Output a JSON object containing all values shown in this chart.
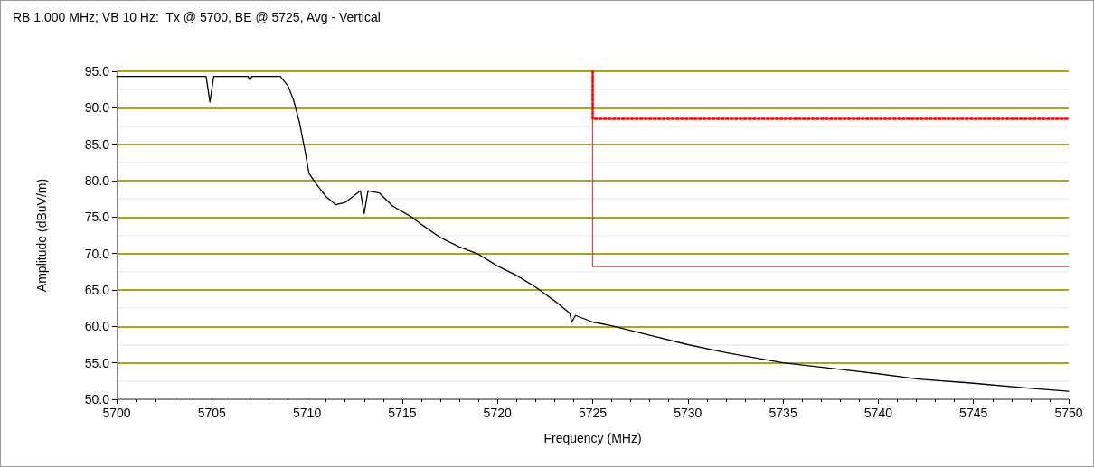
{
  "chart_data": {
    "type": "line",
    "title": "RB 1.000 MHz; VB 10 Hz:  Tx @ 5700, BE @ 5725, Avg - Vertical",
    "xlabel": "Frequency (MHz)",
    "ylabel": "Amplitude (dBuV/m)",
    "xlim": [
      5700,
      5750
    ],
    "xticks": [
      5700,
      5705,
      5710,
      5715,
      5720,
      5725,
      5730,
      5735,
      5740,
      5745,
      5750
    ],
    "ylim": [
      50,
      95
    ],
    "yticks": [
      {
        "value": 50,
        "label": "50.0"
      },
      {
        "value": 55,
        "label": "55.0"
      },
      {
        "value": 60,
        "label": "60.0"
      },
      {
        "value": 65,
        "label": "65.0"
      },
      {
        "value": 70,
        "label": "70.0"
      },
      {
        "value": 75,
        "label": "75.0"
      },
      {
        "value": 80,
        "label": "80.0"
      },
      {
        "value": 85,
        "label": "85.0"
      },
      {
        "value": 90,
        "label": "90.0"
      },
      {
        "value": 95,
        "label": "95.0"
      }
    ],
    "grid": "y",
    "marker": "none",
    "series": [
      {
        "color": "#000000",
        "line_style": "solid",
        "x": [
          5700,
          5704.7,
          5704.9,
          5705.1,
          5706.9,
          5707,
          5707.1,
          5708.6,
          5709,
          5709.3,
          5709.6,
          5709.9,
          5710.1,
          5710.5,
          5711,
          5711.5,
          5712,
          5712.6,
          5712.8,
          5713,
          5713.2,
          5713.8,
          5714.5,
          5715.5,
          5716,
          5717,
          5718,
          5719,
          5720,
          5721,
          5722,
          5723,
          5723.8,
          5723.9,
          5724.1,
          5725,
          5726,
          5728,
          5730,
          5732,
          5735,
          5738,
          5740,
          5742,
          5745,
          5748,
          5750
        ],
        "values": [
          94.3,
          94.3,
          90.8,
          94.3,
          94.3,
          93.8,
          94.3,
          94.3,
          93,
          91,
          88,
          84,
          81,
          79.5,
          77.8,
          76.7,
          77,
          78.2,
          78.6,
          75.5,
          78.6,
          78.3,
          76.5,
          75,
          74,
          72.2,
          70.9,
          69.9,
          68.3,
          67,
          65.4,
          63.5,
          61.8,
          60.6,
          61.5,
          60.6,
          60.1,
          58.8,
          57.5,
          56.4,
          55,
          54.1,
          53.5,
          52.8,
          52.2,
          51.5,
          51.1
        ]
      },
      {
        "color": "#ff3b30",
        "line_style": "solid",
        "x": [
          5725,
          5725,
          5750
        ],
        "values": [
          95,
          68.2,
          68.2
        ]
      },
      {
        "color": "#ff0000",
        "line_style": "dotted",
        "x": [
          5725,
          5725,
          5750
        ],
        "values": [
          95,
          88.5,
          88.5
        ]
      }
    ]
  }
}
